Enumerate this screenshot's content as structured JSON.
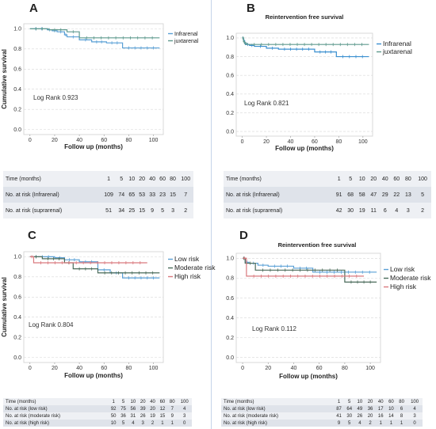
{
  "chart_data": [
    {
      "panel": "A",
      "type": "line",
      "title": "",
      "xlabel": "Follow up (months)",
      "ylabel": "Cumulative survival",
      "xlim": [
        -5,
        108
      ],
      "ylim": [
        -0.05,
        1.05
      ],
      "xticks": [
        0,
        20,
        40,
        60,
        80,
        100
      ],
      "yticks": [
        0.0,
        0.2,
        0.4,
        0.6,
        0.8,
        1.0
      ],
      "annotation": "Log Rank 0.923",
      "legend_position": "top-right",
      "series": [
        {
          "name": "Infrarenal",
          "color": "#5aa0d6",
          "x": [
            0,
            14,
            18,
            22,
            28,
            30,
            40,
            50,
            62,
            75,
            105
          ],
          "y": [
            1.0,
            0.99,
            0.98,
            0.97,
            0.94,
            0.92,
            0.89,
            0.87,
            0.86,
            0.81,
            0.81
          ]
        },
        {
          "name": "juxtarenal",
          "color": "#5f9a8e",
          "x": [
            0,
            15,
            30,
            40,
            105
          ],
          "y": [
            1.0,
            0.99,
            0.97,
            0.91,
            0.91
          ]
        }
      ],
      "risk_table": {
        "header": "Time (months)",
        "times": [
          "1",
          "5",
          "10",
          "20",
          "40",
          "60",
          "80",
          "100"
        ],
        "rows": [
          {
            "label": "No. at risk (Infrarenal)",
            "values": [
              "109",
              "74",
              "65",
              "53",
              "33",
              "23",
              "15",
              "7"
            ]
          },
          {
            "label": "No. at risk (suprarenal)",
            "values": [
              "51",
              "34",
              "25",
              "15",
              "9",
              "5",
              "3",
              "2"
            ]
          }
        ]
      }
    },
    {
      "panel": "B",
      "type": "line",
      "title": "Reintervention free survival",
      "xlabel": "Follow up (months)",
      "ylabel": "",
      "xlim": [
        -5,
        108
      ],
      "ylim": [
        -0.05,
        1.05
      ],
      "xticks": [
        0,
        20,
        40,
        60,
        80,
        100
      ],
      "yticks": [
        0.0,
        0.2,
        0.4,
        0.6,
        0.8,
        1.0
      ],
      "annotation": "Log Rank 0.821",
      "legend_position": "right",
      "series": [
        {
          "name": "Infrarenal",
          "color": "#3a8fd0",
          "x": [
            0,
            1,
            2,
            3,
            6,
            10,
            20,
            30,
            60,
            78,
            105
          ],
          "y": [
            1.0,
            0.97,
            0.94,
            0.93,
            0.92,
            0.91,
            0.89,
            0.88,
            0.85,
            0.8,
            0.8
          ]
        },
        {
          "name": "juxtarenal",
          "color": "#5f9a8e",
          "x": [
            0,
            1,
            2,
            4,
            105
          ],
          "y": [
            1.0,
            0.96,
            0.94,
            0.93,
            0.93
          ]
        }
      ],
      "risk_table": {
        "header": "Time (months)",
        "times": [
          "1",
          "5",
          "10",
          "20",
          "40",
          "60",
          "80",
          "100"
        ],
        "rows": [
          {
            "label": "No. at risk (Infrarenal)",
            "values": [
              "91",
              "68",
              "58",
              "47",
              "29",
              "22",
              "13",
              "5"
            ]
          },
          {
            "label": "No. at risk (suprarenal)",
            "values": [
              "42",
              "30",
              "19",
              "11",
              "6",
              "4",
              "3",
              "2"
            ]
          }
        ]
      }
    },
    {
      "panel": "C",
      "type": "line",
      "title": "",
      "xlabel": "Follow up (months)",
      "ylabel": "Cumulative survival",
      "xlim": [
        -5,
        108
      ],
      "ylim": [
        -0.05,
        1.05
      ],
      "xticks": [
        0,
        20,
        40,
        60,
        80,
        100
      ],
      "yticks": [
        0.0,
        0.2,
        0.4,
        0.6,
        0.8,
        1.0
      ],
      "annotation": "Log Rank 0.804",
      "legend_position": "top-right",
      "series": [
        {
          "name": "Low risk",
          "color": "#5aa0d6",
          "x": [
            0,
            20,
            28,
            40,
            55,
            65,
            75,
            105
          ],
          "y": [
            1.0,
            0.99,
            0.97,
            0.95,
            0.87,
            0.84,
            0.79,
            0.79
          ]
        },
        {
          "name": "Moderate risk",
          "color": "#4a6b5a",
          "x": [
            0,
            10,
            28,
            35,
            55,
            105
          ],
          "y": [
            1.0,
            0.98,
            0.94,
            0.88,
            0.84,
            0.84
          ]
        },
        {
          "name": "High risk",
          "color": "#d9797e",
          "x": [
            0,
            3,
            95
          ],
          "y": [
            1.0,
            0.94,
            0.94
          ]
        }
      ],
      "risk_table": {
        "header": "Time (months)",
        "times": [
          "1",
          "5",
          "10",
          "20",
          "40",
          "60",
          "80",
          "100"
        ],
        "rows": [
          {
            "label": "No. at risk (low risk)",
            "values": [
              "92",
              "75",
              "56",
              "39",
              "20",
              "12",
              "7",
              "4"
            ]
          },
          {
            "label": "No. at risk (moderate risk)",
            "values": [
              "50",
              "36",
              "31",
              "26",
              "19",
              "15",
              "9",
              "3"
            ]
          },
          {
            "label": "No. at risk (high risk)",
            "values": [
              "10",
              "5",
              "4",
              "3",
              "2",
              "1",
              "1",
              "0"
            ]
          }
        ]
      }
    },
    {
      "panel": "D",
      "type": "line",
      "title": "Reintervention free survival",
      "xlabel": "Follow up (months)",
      "ylabel": "",
      "xlim": [
        -5,
        108
      ],
      "ylim": [
        -0.05,
        1.05
      ],
      "xticks": [
        0,
        20,
        40,
        60,
        80,
        100
      ],
      "yticks": [
        0.0,
        0.2,
        0.4,
        0.6,
        0.8,
        1.0
      ],
      "annotation": "Log Rank 0.112",
      "legend_position": "right",
      "series": [
        {
          "name": "Low risk",
          "color": "#5aa0d6",
          "x": [
            0,
            2,
            5,
            12,
            20,
            40,
            55,
            105
          ],
          "y": [
            1.0,
            0.96,
            0.95,
            0.93,
            0.92,
            0.9,
            0.86,
            0.86
          ]
        },
        {
          "name": "Moderate risk",
          "color": "#4a6b5a",
          "x": [
            0,
            2,
            10,
            80,
            105
          ],
          "y": [
            1.0,
            0.95,
            0.88,
            0.76,
            0.76
          ]
        },
        {
          "name": "High risk",
          "color": "#d9797e",
          "x": [
            0,
            3,
            95
          ],
          "y": [
            1.0,
            0.82,
            0.82
          ]
        }
      ],
      "risk_table": {
        "header": "Time (months)",
        "times": [
          "1",
          "5",
          "10",
          "20",
          "40",
          "60",
          "80",
          "100"
        ],
        "rows": [
          {
            "label": "No. at risk (low risk)",
            "values": [
              "87",
              "64",
              "49",
              "36",
              "17",
              "10",
              "6",
              "4"
            ]
          },
          {
            "label": "No. at risk (moderate risk)",
            "values": [
              "41",
              "30",
              "26",
              "20",
              "16",
              "14",
              "8",
              "3"
            ]
          },
          {
            "label": "No. at risk (high risk)",
            "values": [
              "9",
              "5",
              "4",
              "2",
              "1",
              "1",
              "1",
              "0"
            ]
          }
        ]
      }
    }
  ]
}
